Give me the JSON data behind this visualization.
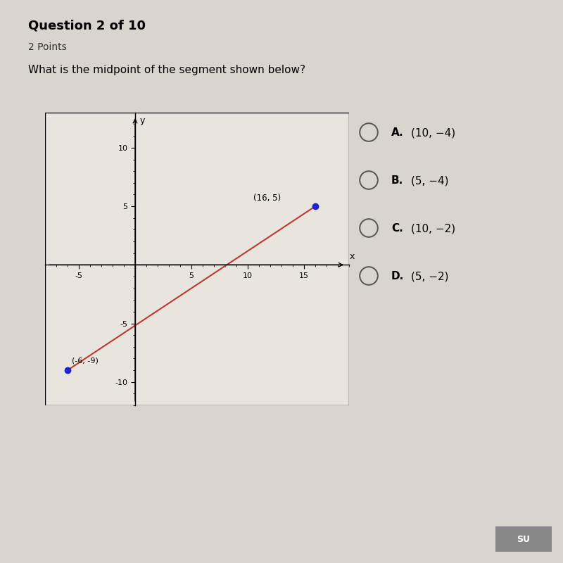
{
  "title": "Question 2 of 10",
  "subtitle": "2 Points",
  "question": "What is the midpoint of the segment shown below?",
  "point1": [
    -6,
    -9
  ],
  "point2": [
    16,
    5
  ],
  "point1_label": "(-6, -9)",
  "point2_label": "(16, 5)",
  "segment_color": "#c0392b",
  "point_color": "#2020cc",
  "choice_labels": [
    "A.",
    "B.",
    "C.",
    "D."
  ],
  "choice_values": [
    "(10, −4)",
    "(5, −4)",
    "(10, −2)",
    "(5, −2)"
  ],
  "xlim": [
    -8,
    19
  ],
  "ylim": [
    -12,
    13
  ],
  "xticks": [
    -5,
    5,
    10,
    15
  ],
  "yticks": [
    -10,
    -5,
    5,
    10
  ],
  "page_bg": "#d8d4ce",
  "graph_bg": "#e8e4de",
  "title_fontsize": 13,
  "subtitle_fontsize": 10,
  "question_fontsize": 11,
  "tick_fontsize": 8,
  "choice_fontsize": 11
}
